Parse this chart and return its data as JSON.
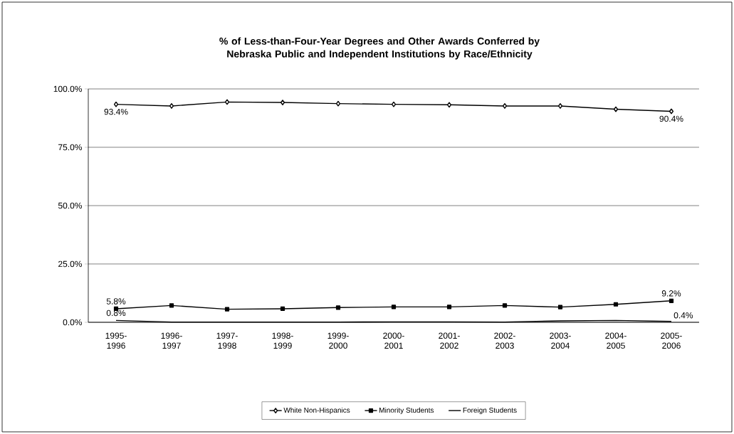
{
  "chart_data": {
    "type": "line",
    "title": "% of Less-than-Four-Year Degrees and Other Awards Conferred by Nebraska Public and Independent Institutions by Race/Ethnicity",
    "categories": [
      "1995-1996",
      "1996-1997",
      "1997-1998",
      "1998-1999",
      "1999-2000",
      "2000-2001",
      "2001-2002",
      "2002-2003",
      "2003-2004",
      "2004-2005",
      "2005-2006"
    ],
    "series": [
      {
        "name": "White Non-Hispanics",
        "color": "#000000",
        "marker": "diamond",
        "values": [
          93.4,
          92.7,
          94.4,
          94.2,
          93.7,
          93.4,
          93.2,
          92.7,
          92.7,
          91.3,
          90.4
        ],
        "value_labels": [
          "93.4%",
          null,
          null,
          null,
          null,
          null,
          null,
          null,
          null,
          null,
          "90.4%"
        ]
      },
      {
        "name": "Minority Students",
        "color": "#000000",
        "marker": "square",
        "values": [
          5.8,
          7.2,
          5.6,
          5.8,
          6.3,
          6.6,
          6.6,
          7.2,
          6.5,
          7.7,
          9.2
        ],
        "value_labels": [
          "5.8%",
          null,
          null,
          null,
          null,
          null,
          null,
          null,
          null,
          null,
          "9.2%"
        ]
      },
      {
        "name": "Foreign Students",
        "color": "#000000",
        "marker": "none",
        "values": [
          0.8,
          0.1,
          0.1,
          0.1,
          0.1,
          0.2,
          0.2,
          0.1,
          0.6,
          0.8,
          0.4
        ],
        "value_labels": [
          "0.8%",
          null,
          null,
          null,
          null,
          null,
          null,
          null,
          null,
          null,
          "0.4%"
        ]
      }
    ],
    "ylim": [
      0,
      100
    ],
    "yticks": [
      {
        "value": 0,
        "label": "0.0%"
      },
      {
        "value": 25,
        "label": "25.0%"
      },
      {
        "value": 50,
        "label": "50.0%"
      },
      {
        "value": 75,
        "label": "75.0%"
      },
      {
        "value": 100,
        "label": "100.0%"
      }
    ],
    "grid": "y",
    "legend": "bottom",
    "line_style": "solid"
  }
}
